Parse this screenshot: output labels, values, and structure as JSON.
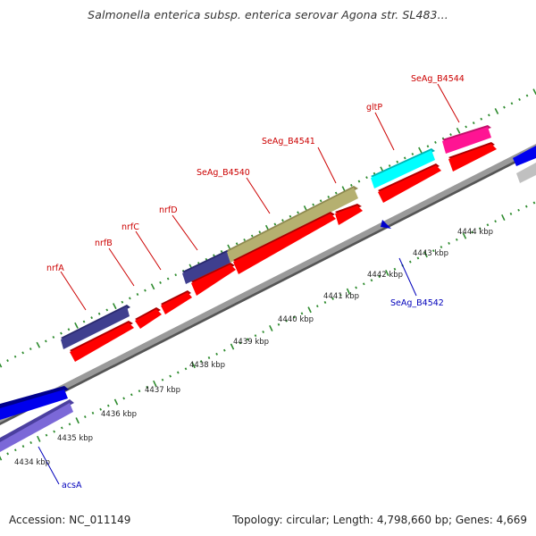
{
  "title": "Salmonella enterica subsp. enterica serovar Agona str. SL483...",
  "footer": {
    "accession": "Accession: NC_011149",
    "summary": "Topology: circular; Length: 4,798,660 bp; Genes: 4,669"
  },
  "colors": {
    "background": "#ffffff",
    "backbone": "#8c8c8c",
    "forward_label": "#cc0000",
    "reverse_label": "#0000bb",
    "tick_major": "#2e8b2e",
    "tick_minor": "#228b22",
    "cds_red": "#ff0000",
    "cds_navy": "#3f3f8f",
    "cds_olive": "#b5b070",
    "cds_cyan": "#00ffff",
    "cds_magenta": "#ff1493",
    "cds_blue": "#0000ee",
    "cds_lavender": "#7b68d8",
    "cds_silver": "#c0c0c0"
  },
  "kbp_labels": [
    "4434 kbp",
    "4435 kbp",
    "4436 kbp",
    "4437 kbp",
    "4438 kbp",
    "4439 kbp",
    "4440 kbp",
    "4441 kbp",
    "4442 kbp",
    "4443 kbp",
    "4444 kbp"
  ],
  "gene_labels": [
    {
      "name": "nrfA",
      "strand": "forward"
    },
    {
      "name": "nrfB",
      "strand": "forward"
    },
    {
      "name": "nrfC",
      "strand": "forward"
    },
    {
      "name": "nrfD",
      "strand": "forward"
    },
    {
      "name": "SeAg_B4540",
      "strand": "forward"
    },
    {
      "name": "SeAg_B4541",
      "strand": "forward"
    },
    {
      "name": "gltP",
      "strand": "forward"
    },
    {
      "name": "SeAg_B4544",
      "strand": "forward"
    },
    {
      "name": "SeAg_B4542",
      "strand": "reverse"
    },
    {
      "name": "acsA",
      "strand": "reverse"
    }
  ]
}
